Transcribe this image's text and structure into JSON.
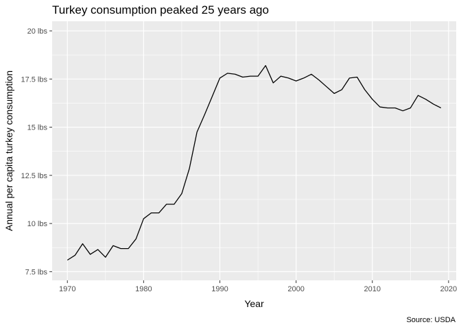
{
  "chart_data": {
    "type": "line",
    "title": "Turkey consumption peaked 25 years ago",
    "xlabel": "Year",
    "ylabel": "Annual per capita turkey consumption",
    "caption": "Source: USDA",
    "xlim": [
      1968,
      2021
    ],
    "ylim": [
      7.05,
      20.5
    ],
    "x_ticks": [
      {
        "value": 1970,
        "label": "1970"
      },
      {
        "value": 1980,
        "label": "1980"
      },
      {
        "value": 1990,
        "label": "1990"
      },
      {
        "value": 2000,
        "label": "2000"
      },
      {
        "value": 2010,
        "label": "2010"
      },
      {
        "value": 2020,
        "label": "2020"
      }
    ],
    "y_ticks": [
      {
        "value": 7.5,
        "label": "7.5 lbs"
      },
      {
        "value": 10,
        "label": "10 lbs"
      },
      {
        "value": 12.5,
        "label": "12.5 lbs"
      },
      {
        "value": 15,
        "label": "15 lbs"
      },
      {
        "value": 17.5,
        "label": "17.5 lbs"
      },
      {
        "value": 20,
        "label": "20 lbs"
      }
    ],
    "grid": true,
    "panel_background": "#ebebeb",
    "grid_color": "#ffffff",
    "line_color": "#000000",
    "series": [
      {
        "x": [
          1970,
          1971,
          1972,
          1973,
          1974,
          1975,
          1976,
          1977,
          1978,
          1979,
          1980,
          1981,
          1982,
          1983,
          1984,
          1985,
          1986,
          1987,
          1988,
          1989,
          1990,
          1991,
          1992,
          1993,
          1994,
          1995,
          1996,
          1997,
          1998,
          1999,
          2000,
          2001,
          2002,
          2003,
          2004,
          2005,
          2006,
          2007,
          2008,
          2009,
          2010,
          2011,
          2012,
          2013,
          2014,
          2015,
          2016,
          2017,
          2018,
          2019
        ],
        "values": [
          8.1,
          8.35,
          8.95,
          8.4,
          8.65,
          8.25,
          8.85,
          8.7,
          8.7,
          9.2,
          10.25,
          10.55,
          10.55,
          11.0,
          11.0,
          11.55,
          12.85,
          14.75,
          15.65,
          16.6,
          17.55,
          17.8,
          17.75,
          17.6,
          17.65,
          17.65,
          18.2,
          17.3,
          17.65,
          17.55,
          17.4,
          17.55,
          17.75,
          17.45,
          17.1,
          16.75,
          16.95,
          17.55,
          17.6,
          16.95,
          16.45,
          16.05,
          16.0,
          16.0,
          15.85,
          16.0,
          16.65,
          16.45,
          16.2,
          16.0
        ]
      }
    ]
  }
}
